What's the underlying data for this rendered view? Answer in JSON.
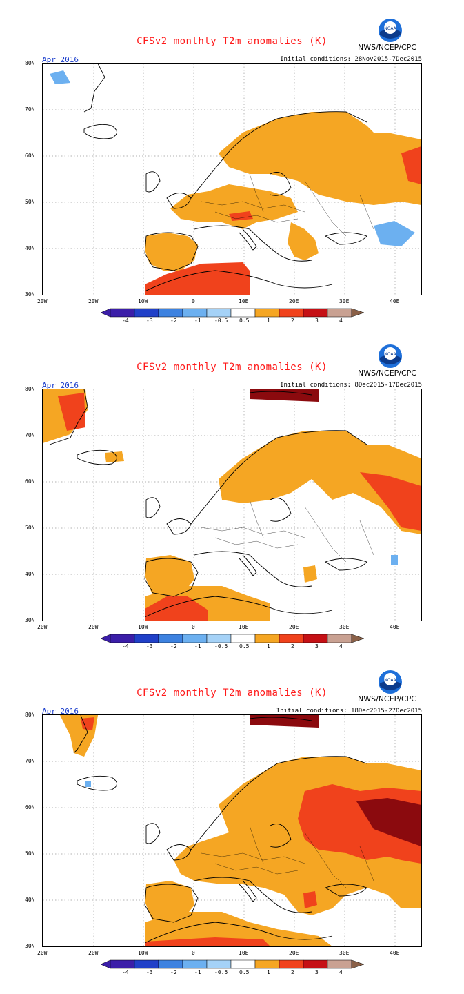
{
  "colors": {
    "title": "#ff1a1a",
    "month": "#1a3dcc",
    "legend": [
      "#3b1ea8",
      "#2040c8",
      "#3d82e0",
      "#6cb0f0",
      "#a5d2f7",
      "#ffffff",
      "#f5a623",
      "#f0421c",
      "#c51015",
      "#8b0a0e",
      "#c9a192",
      "#8b6148"
    ],
    "anomaly": {
      "warm1": "#f5a623",
      "warm2": "#f0421c",
      "warm3": "#a50f12",
      "warm4": "#8b0a0e",
      "cool1": "#6cb0f0"
    }
  },
  "axes": {
    "y_labels": [
      "80N",
      "70N",
      "60N",
      "50N",
      "40N",
      "30N"
    ],
    "x_labels": [
      "20W",
      "20W",
      "10W",
      "0",
      "10E",
      "20E",
      "30E",
      "40E"
    ],
    "legend_ticks": [
      "-4",
      "-3",
      "-2",
      "-1",
      "-0.5",
      "0.5",
      "1",
      "2",
      "3",
      "4"
    ]
  },
  "panels": [
    {
      "title": "CFSv2 monthly T2m anomalies (K)",
      "agency": "NWS/NCEP/CPC",
      "logo_text": "NOAA",
      "month": "Apr 2016",
      "initial_conditions": "Initial conditions: 28Nov2015-7Dec2015"
    },
    {
      "title": "CFSv2 monthly T2m anomalies (K)",
      "agency": "NWS/NCEP/CPC",
      "logo_text": "NOAA",
      "month": "Apr 2016",
      "initial_conditions": "Initial conditions: 8Dec2015-17Dec2015"
    },
    {
      "title": "CFSv2 monthly T2m anomalies (K)",
      "agency": "NWS/NCEP/CPC",
      "logo_text": "NOAA",
      "month": "Apr 2016",
      "initial_conditions": "Initial conditions: 18Dec2015-27Dec2015"
    }
  ]
}
